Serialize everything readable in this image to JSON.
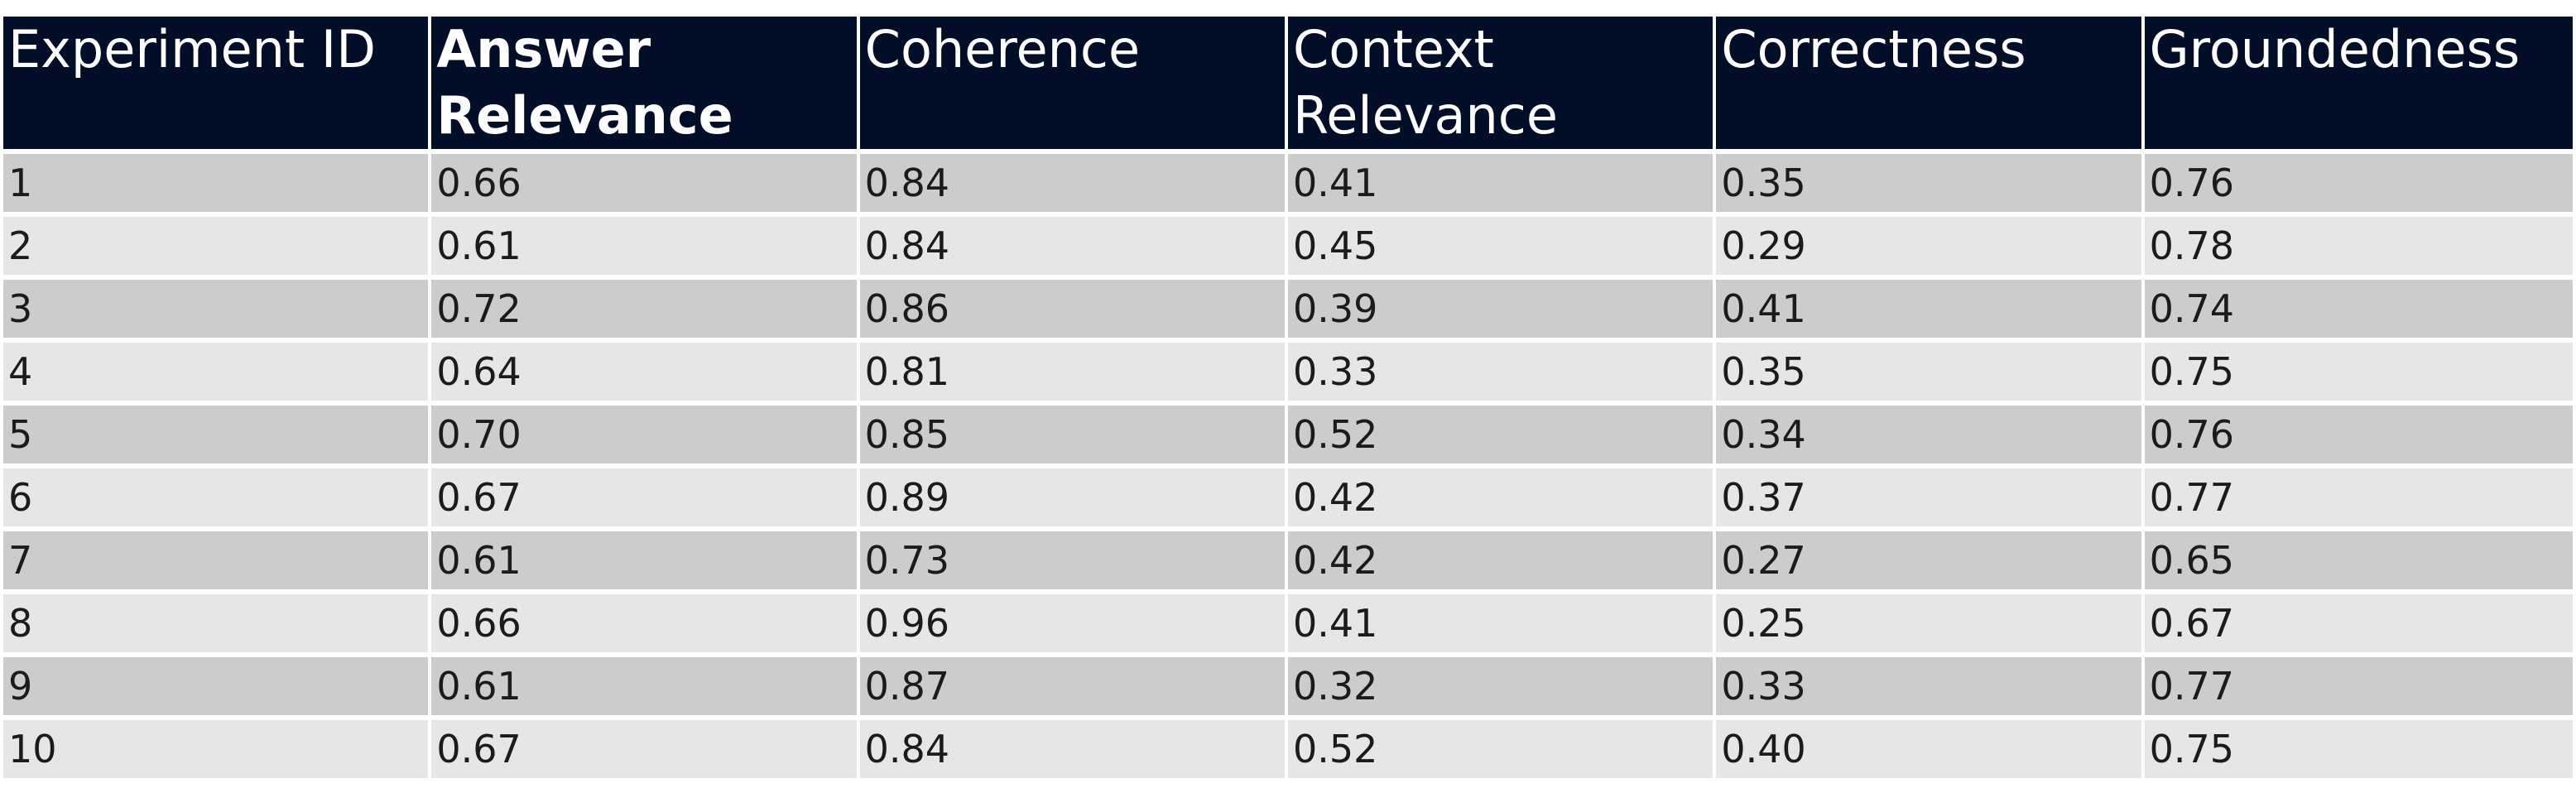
{
  "chart_data": {
    "type": "table",
    "columns": [
      "Experiment ID",
      "Answer Relevance",
      "Coherence",
      "Context Relevance",
      "Correctness",
      "Groundedness"
    ],
    "rows": [
      [
        "1",
        "0.66",
        "0.84",
        "0.41",
        "0.35",
        "0.76"
      ],
      [
        "2",
        "0.61",
        "0.84",
        "0.45",
        "0.29",
        "0.78"
      ],
      [
        "3",
        "0.72",
        "0.86",
        "0.39",
        "0.41",
        "0.74"
      ],
      [
        "4",
        "0.64",
        "0.81",
        "0.33",
        "0.35",
        "0.75"
      ],
      [
        "5",
        "0.70",
        "0.85",
        "0.52",
        "0.34",
        "0.76"
      ],
      [
        "6",
        "0.67",
        "0.89",
        "0.42",
        "0.37",
        "0.77"
      ],
      [
        "7",
        "0.61",
        "0.73",
        "0.42",
        "0.27",
        "0.65"
      ],
      [
        "8",
        "0.66",
        "0.96",
        "0.41",
        "0.25",
        "0.67"
      ],
      [
        "9",
        "0.61",
        "0.87",
        "0.32",
        "0.33",
        "0.77"
      ],
      [
        "10",
        "0.67",
        "0.84",
        "0.52",
        "0.40",
        "0.75"
      ]
    ]
  },
  "colors": {
    "header_bg": "#020e28",
    "header_text": "#ffffff",
    "row_odd_bg": "#cbcccb",
    "row_even_bg": "#e6e6e6",
    "cell_text": "#1b1b1b"
  }
}
